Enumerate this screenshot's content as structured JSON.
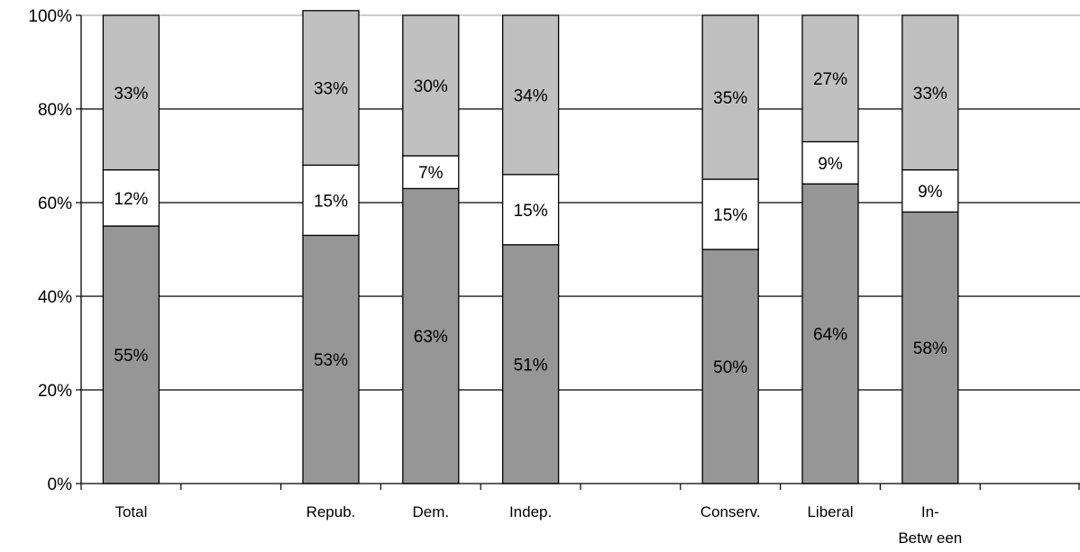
{
  "chart_data": {
    "type": "bar",
    "stacked": true,
    "categories": [
      "Total",
      "",
      "Repub.",
      "Dem.",
      "Indep.",
      "",
      "Conserv.",
      "Liberal",
      "In-Between"
    ],
    "category_display": [
      [
        "Total"
      ],
      [],
      [
        "Repub."
      ],
      [
        "Dem."
      ],
      [
        "Indep."
      ],
      [],
      [
        "Conserv."
      ],
      [
        "Liberal"
      ],
      [
        "In-",
        "Betw een"
      ]
    ],
    "series": [
      {
        "values": [
          55,
          null,
          53,
          63,
          51,
          null,
          50,
          64,
          58
        ],
        "color": "#969696"
      },
      {
        "values": [
          12,
          null,
          15,
          7,
          15,
          null,
          15,
          9,
          9
        ],
        "color": "#ffffff"
      },
      {
        "values": [
          33,
          null,
          33,
          30,
          34,
          null,
          35,
          27,
          33
        ],
        "color": "#c0c0c0"
      }
    ],
    "data_labels": [
      [
        "55%",
        null,
        "53%",
        "63%",
        "51%",
        null,
        "50%",
        "64%",
        "58%"
      ],
      [
        "12%",
        null,
        "15%",
        "7%",
        "15%",
        null,
        "15%",
        "9%",
        "9%"
      ],
      [
        "33%",
        null,
        "33%",
        "30%",
        "34%",
        null,
        "35%",
        "27%",
        "33%"
      ]
    ],
    "y_ticks": [
      "0%",
      "20%",
      "40%",
      "60%",
      "80%",
      "100%"
    ],
    "ylim": [
      0,
      100
    ],
    "grid": true,
    "legend": "none",
    "title": "",
    "xlabel": "",
    "ylabel": ""
  }
}
